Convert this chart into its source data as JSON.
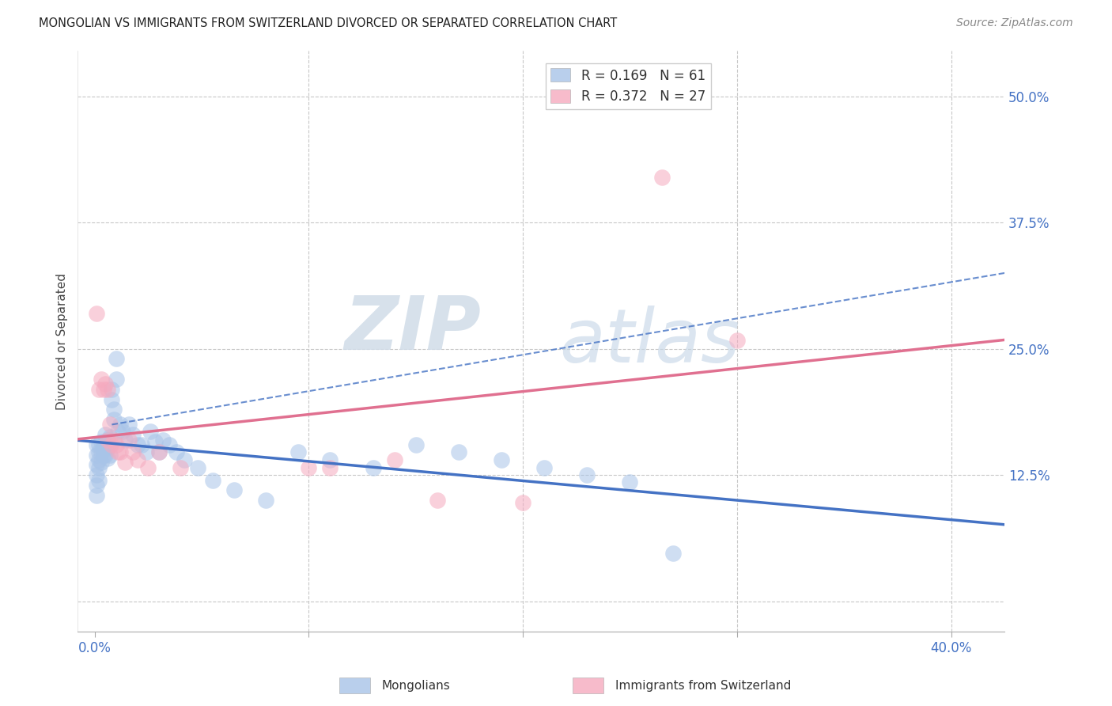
{
  "title": "MONGOLIAN VS IMMIGRANTS FROM SWITZERLAND DIVORCED OR SEPARATED CORRELATION CHART",
  "source": "Source: ZipAtlas.com",
  "ylabel": "Divorced or Separated",
  "x_ticks": [
    0.0,
    0.1,
    0.2,
    0.3,
    0.4
  ],
  "x_tick_labels": [
    "0.0%",
    "",
    "",
    "",
    "40.0%"
  ],
  "y_ticks": [
    0.0,
    0.125,
    0.25,
    0.375,
    0.5
  ],
  "y_tick_labels": [
    "",
    "12.5%",
    "25.0%",
    "37.5%",
    "50.0%"
  ],
  "xlim": [
    -0.008,
    0.425
  ],
  "ylim": [
    -0.03,
    0.545
  ],
  "mongolian_R": 0.169,
  "mongolian_N": 61,
  "swiss_R": 0.372,
  "swiss_N": 27,
  "mongolian_color": "#a8c4e8",
  "swiss_color": "#f5aabf",
  "mongolian_line_color": "#4472c4",
  "swiss_line_color": "#e07090",
  "background_color": "#ffffff",
  "grid_color": "#c8c8c8",
  "legend_label_mongolian": "Mongolians",
  "legend_label_swiss": "Immigrants from Switzerland",
  "watermark_zip": "ZIP",
  "watermark_atlas": "atlas",
  "mongolian_x": [
    0.001,
    0.001,
    0.001,
    0.001,
    0.001,
    0.001,
    0.002,
    0.002,
    0.002,
    0.002,
    0.002,
    0.003,
    0.003,
    0.003,
    0.004,
    0.004,
    0.005,
    0.005,
    0.005,
    0.006,
    0.006,
    0.006,
    0.007,
    0.007,
    0.007,
    0.008,
    0.008,
    0.009,
    0.009,
    0.01,
    0.01,
    0.011,
    0.012,
    0.013,
    0.014,
    0.016,
    0.018,
    0.02,
    0.022,
    0.024,
    0.026,
    0.028,
    0.03,
    0.032,
    0.035,
    0.038,
    0.042,
    0.048,
    0.055,
    0.065,
    0.08,
    0.095,
    0.11,
    0.13,
    0.15,
    0.17,
    0.19,
    0.21,
    0.23,
    0.25,
    0.27
  ],
  "mongolian_y": [
    0.155,
    0.145,
    0.135,
    0.125,
    0.115,
    0.105,
    0.155,
    0.148,
    0.14,
    0.132,
    0.12,
    0.158,
    0.148,
    0.138,
    0.155,
    0.145,
    0.165,
    0.155,
    0.145,
    0.16,
    0.152,
    0.142,
    0.163,
    0.155,
    0.145,
    0.21,
    0.2,
    0.19,
    0.18,
    0.24,
    0.22,
    0.168,
    0.175,
    0.168,
    0.16,
    0.175,
    0.165,
    0.155,
    0.155,
    0.148,
    0.168,
    0.158,
    0.148,
    0.16,
    0.155,
    0.148,
    0.14,
    0.132,
    0.12,
    0.11,
    0.1,
    0.148,
    0.14,
    0.132,
    0.155,
    0.148,
    0.14,
    0.132,
    0.125,
    0.118,
    0.048
  ],
  "swiss_x": [
    0.001,
    0.002,
    0.003,
    0.004,
    0.005,
    0.006,
    0.006,
    0.007,
    0.008,
    0.009,
    0.01,
    0.011,
    0.012,
    0.014,
    0.016,
    0.018,
    0.02,
    0.025,
    0.03,
    0.04,
    0.1,
    0.11,
    0.14,
    0.16,
    0.2,
    0.265,
    0.3
  ],
  "swiss_y": [
    0.285,
    0.21,
    0.22,
    0.21,
    0.215,
    0.21,
    0.16,
    0.175,
    0.155,
    0.16,
    0.155,
    0.148,
    0.148,
    0.138,
    0.16,
    0.148,
    0.14,
    0.132,
    0.148,
    0.132,
    0.132,
    0.132,
    0.14,
    0.1,
    0.098,
    0.42,
    0.258
  ]
}
